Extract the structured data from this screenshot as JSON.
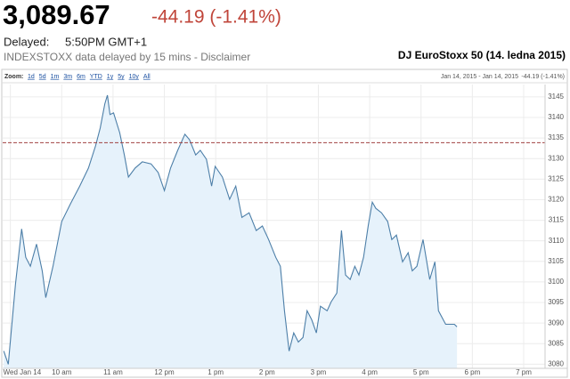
{
  "quote": {
    "price": "3,089.67",
    "change": "-44.19 (-1.41%)",
    "delayed_label": "Delayed:",
    "delayed_time": "5:50PM GMT+1",
    "source": "INDEXSTOXX data delayed by 15 mins - Disclaimer"
  },
  "toolbar": {
    "zoom_label": "Zoom:",
    "zoom_options": [
      "1d",
      "5d",
      "1m",
      "3m",
      "6m",
      "YTD",
      "1y",
      "5y",
      "10y",
      "All"
    ],
    "range": "Jan 14, 2015 - Jan 14, 2015",
    "range_change": "-44.19 (-1.41%)"
  },
  "chart_data": {
    "type": "line",
    "title": "DJ EuroStoxx 50 (14. ledna 2015)",
    "x": [
      8.87,
      8.96,
      9.1,
      9.22,
      9.3,
      9.39,
      9.51,
      9.62,
      9.69,
      9.83,
      10.0,
      10.17,
      10.35,
      10.52,
      10.66,
      10.75,
      10.84,
      10.89,
      10.94,
      11.01,
      11.13,
      11.22,
      11.3,
      11.43,
      11.57,
      11.74,
      11.88,
      12.0,
      12.12,
      12.26,
      12.4,
      12.49,
      12.61,
      12.7,
      12.82,
      12.92,
      12.99,
      13.13,
      13.27,
      13.39,
      13.51,
      13.65,
      13.79,
      13.91,
      14.03,
      14.17,
      14.26,
      14.34,
      14.43,
      14.52,
      14.61,
      14.7,
      14.78,
      14.87,
      14.96,
      15.04,
      15.17,
      15.25,
      15.36,
      15.45,
      15.53,
      15.62,
      15.71,
      15.79,
      15.88,
      15.97,
      16.05,
      16.12,
      16.23,
      16.35,
      16.43,
      16.52,
      16.64,
      16.75,
      16.83,
      16.92,
      17.04,
      17.17,
      17.27,
      17.34,
      17.48,
      17.65,
      17.7
    ],
    "series": [
      {
        "name": "DJ EuroStoxx 50",
        "color": "#4d7fa8",
        "fill": "#e6f2fb",
        "values": [
          3083.2,
          3080.0,
          3099.5,
          3112.9,
          3106.0,
          3103.8,
          3109.2,
          3102.7,
          3096.2,
          3103.8,
          3114.7,
          3119.0,
          3123.3,
          3127.7,
          3133.1,
          3137.4,
          3143.3,
          3145.4,
          3140.7,
          3141.1,
          3136.3,
          3130.9,
          3125.5,
          3127.7,
          3129.2,
          3128.7,
          3126.6,
          3122.2,
          3127.7,
          3132.0,
          3135.9,
          3134.6,
          3130.9,
          3132.0,
          3129.8,
          3123.3,
          3128.1,
          3125.5,
          3120.1,
          3123.3,
          3115.7,
          3116.8,
          3112.5,
          3113.6,
          3110.3,
          3106.0,
          3103.8,
          3093.0,
          3083.2,
          3087.6,
          3085.4,
          3086.5,
          3093.0,
          3090.8,
          3087.6,
          3094.1,
          3093.0,
          3095.2,
          3097.3,
          3112.5,
          3101.7,
          3100.6,
          3103.8,
          3101.7,
          3106.0,
          3113.6,
          3119.4,
          3117.9,
          3116.8,
          3114.7,
          3110.3,
          3111.4,
          3104.9,
          3107.1,
          3102.7,
          3103.8,
          3110.3,
          3100.6,
          3104.9,
          3093.0,
          3089.7,
          3089.7,
          3089.1
        ]
      }
    ],
    "previous_close": 3133.86,
    "previous_close_color": "#a04040",
    "xlim": [
      8.85,
      19.85
    ],
    "ylim": [
      3079,
      3148
    ],
    "xticks": [
      {
        "value": 9,
        "label": "Wed Jan 14"
      },
      {
        "value": 10,
        "label": "10 am"
      },
      {
        "value": 11,
        "label": "11 am"
      },
      {
        "value": 12,
        "label": "12 pm"
      },
      {
        "value": 13,
        "label": "1 pm"
      },
      {
        "value": 14,
        "label": "2 pm"
      },
      {
        "value": 15,
        "label": "3 pm"
      },
      {
        "value": 16,
        "label": "4 pm"
      },
      {
        "value": 17,
        "label": "5 pm"
      },
      {
        "value": 18,
        "label": "6 pm"
      },
      {
        "value": 19,
        "label": "7 pm"
      }
    ],
    "yticks": [
      3080,
      3085,
      3090,
      3095,
      3100,
      3105,
      3110,
      3115,
      3120,
      3125,
      3130,
      3135,
      3140,
      3145
    ],
    "grid": true
  }
}
